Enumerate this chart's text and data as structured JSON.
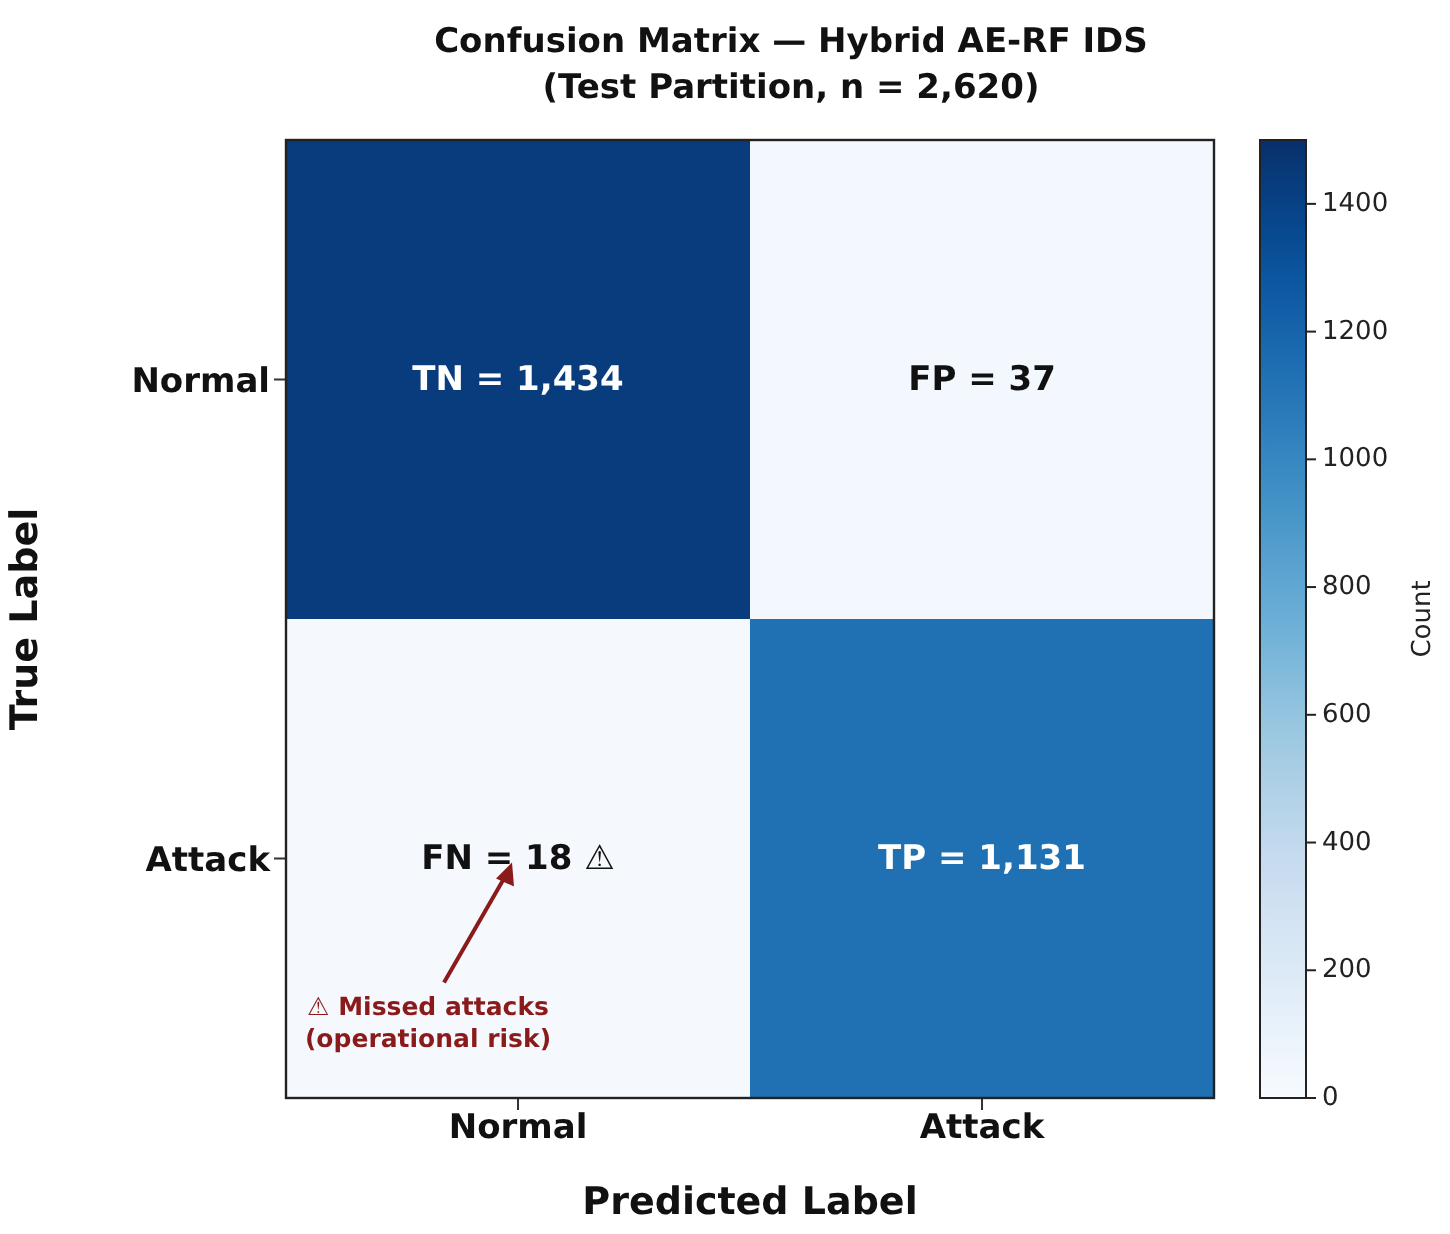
{
  "chart_data": {
    "type": "heatmap",
    "title": "Confusion Matrix — Hybrid AE-RF IDS\n(Test Partition, n = 2,620)",
    "xlabel": "Predicted Label",
    "ylabel": "True Label",
    "clabel": "Count",
    "categories": [
      "Normal",
      "Attack"
    ],
    "y_categories": [
      "Normal",
      "Attack"
    ],
    "cells": [
      [
        1434,
        37
      ],
      [
        18,
        1131
      ]
    ],
    "cell_labels": [
      [
        "TN = 1,434",
        "FP = 37"
      ],
      [
        "FN = 18 ⚠",
        "TP = 1,131"
      ]
    ],
    "clim": [
      0,
      1500
    ],
    "cticks": [
      0,
      200,
      400,
      600,
      800,
      1000,
      1200,
      1400
    ],
    "annotations": [
      "⚠ Missed attacks\n(operational risk)"
    ]
  }
}
